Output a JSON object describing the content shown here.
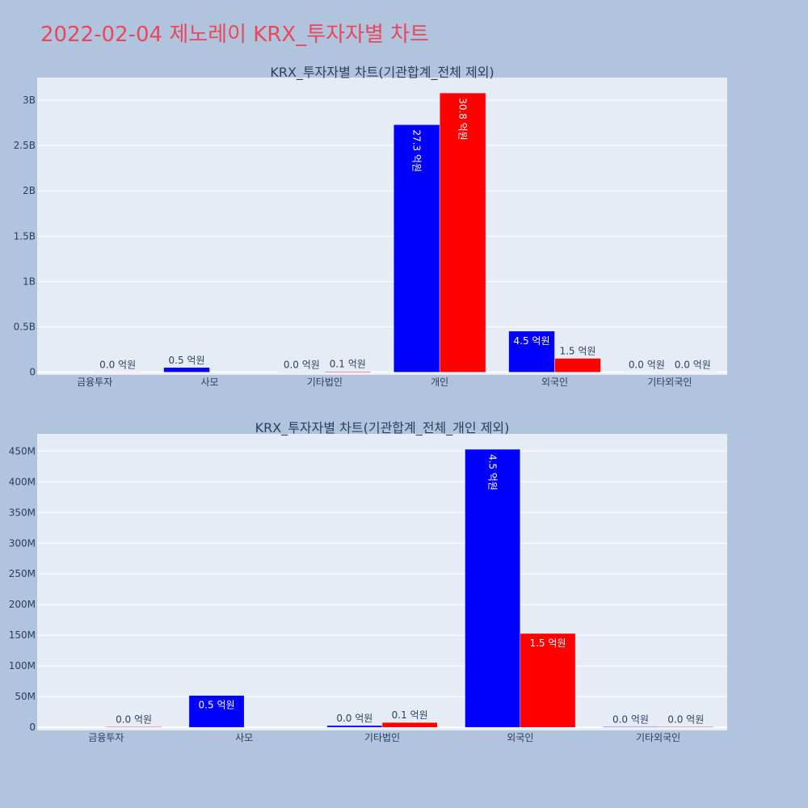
{
  "page": {
    "title": "2022-02-04 제노레이 KRX_투자자별 차트",
    "colors": {
      "background": "#b0c4de",
      "plot_bg": "#e5ecf6",
      "title": "#e8485c",
      "buy": "#0000ff",
      "sell": "#ff0000"
    }
  },
  "chart_data": [
    {
      "type": "bar",
      "title": "KRX_투자자별 차트(기관합계_전체 제외)",
      "categories": [
        "금융투자",
        "사모",
        "기타법인",
        "개인",
        "외국인",
        "기타외국인"
      ],
      "series": [
        {
          "color": "#0000ff",
          "values": [
            0,
            52000000,
            3000000,
            2730000000,
            453000000,
            1000000
          ],
          "labels": [
            "",
            "0.5 억원",
            "0.0 억원",
            "27.3 억원",
            "4.5 억원",
            "0.0 억원"
          ]
        },
        {
          "color": "#ff0000",
          "values": [
            1000000,
            0,
            8000000,
            3080000000,
            153000000,
            1000000
          ],
          "labels": [
            "0.0 억원",
            "",
            "0.1 억원",
            "30.8 억원",
            "1.5 억원",
            "0.0 억원"
          ]
        }
      ],
      "ylim": [
        -30000000,
        3250000000
      ],
      "yticks": [
        0,
        500000000,
        1000000000,
        1500000000,
        2000000000,
        2500000000,
        3000000000
      ],
      "yticklabels": [
        "0",
        "0.5B",
        "1B",
        "1.5B",
        "2B",
        "2.5B",
        "3B"
      ],
      "grid": true
    },
    {
      "type": "bar",
      "title": "KRX_투자자별 차트(기관합계_전체_개인 제외)",
      "categories": [
        "금융투자",
        "사모",
        "기타법인",
        "외국인",
        "기타외국인"
      ],
      "series": [
        {
          "color": "#0000ff",
          "values": [
            0,
            52000000,
            3000000,
            453000000,
            1000000
          ],
          "labels": [
            "",
            "0.5 억원",
            "0.0 억원",
            "4.5 억원",
            "0.0 억원"
          ]
        },
        {
          "color": "#ff0000",
          "values": [
            1000000,
            0,
            8000000,
            153000000,
            1000000
          ],
          "labels": [
            "0.0 억원",
            "",
            "0.1 억원",
            "1.5 억원",
            "0.0 억원"
          ]
        }
      ],
      "ylim": [
        -5000000,
        478000000
      ],
      "yticks": [
        0,
        50000000,
        100000000,
        150000000,
        200000000,
        250000000,
        300000000,
        350000000,
        400000000,
        450000000
      ],
      "yticklabels": [
        "0",
        "50M",
        "100M",
        "150M",
        "200M",
        "250M",
        "300M",
        "350M",
        "400M",
        "450M"
      ],
      "grid": true
    }
  ]
}
